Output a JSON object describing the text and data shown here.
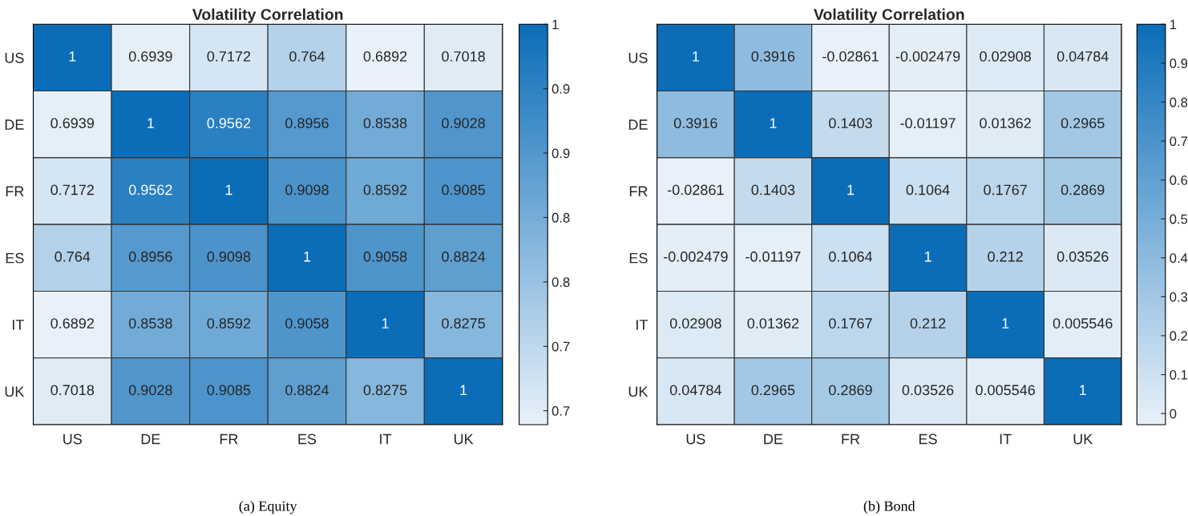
{
  "chart_data": [
    {
      "type": "heatmap",
      "title": "Volatility Correlation",
      "categories": [
        "US",
        "DE",
        "FR",
        "ES",
        "IT",
        "UK"
      ],
      "y_categories": [
        "US",
        "DE",
        "FR",
        "ES",
        "IT",
        "UK"
      ],
      "cells": [
        [
          1,
          0.6939,
          0.7172,
          0.764,
          0.6892,
          0.7018
        ],
        [
          0.6939,
          1,
          0.9562,
          0.8956,
          0.8538,
          0.9028
        ],
        [
          0.7172,
          0.9562,
          1,
          0.9098,
          0.8592,
          0.9085
        ],
        [
          0.764,
          0.8956,
          0.9098,
          1,
          0.9058,
          0.8824
        ],
        [
          0.6892,
          0.8538,
          0.8592,
          0.9058,
          1,
          0.8275
        ],
        [
          0.7018,
          0.9028,
          0.9085,
          0.8824,
          0.8275,
          1
        ]
      ],
      "data_labels": true,
      "clim": [
        0.6892,
        1
      ],
      "cticks": [
        {
          "value": 0.7,
          "label": "0.7"
        },
        {
          "value": 0.75,
          "label": "0.7"
        },
        {
          "value": 0.8,
          "label": "0.8"
        },
        {
          "value": 0.85,
          "label": "0.8"
        },
        {
          "value": 0.9,
          "label": "0.9"
        },
        {
          "value": 0.95,
          "label": "0.9"
        },
        1
      ],
      "annotations": [
        "(a) Equity"
      ]
    },
    {
      "type": "heatmap",
      "title": "Volatility Correlation",
      "categories": [
        "US",
        "DE",
        "FR",
        "ES",
        "IT",
        "UK"
      ],
      "y_categories": [
        "US",
        "DE",
        "FR",
        "ES",
        "IT",
        "UK"
      ],
      "cells": [
        [
          1,
          0.3916,
          -0.02861,
          -0.002479,
          0.02908,
          0.04784
        ],
        [
          0.3916,
          1,
          0.1403,
          -0.01197,
          0.01362,
          0.2965
        ],
        [
          -0.02861,
          0.1403,
          1,
          0.1064,
          0.1767,
          0.2869
        ],
        [
          -0.002479,
          -0.01197,
          0.1064,
          1,
          0.212,
          0.03526
        ],
        [
          0.02908,
          0.01362,
          0.1767,
          0.212,
          1,
          0.005546
        ],
        [
          0.04784,
          0.2965,
          0.2869,
          0.03526,
          0.005546,
          1
        ]
      ],
      "data_labels": true,
      "clim": [
        -0.02861,
        1
      ],
      "cticks": [
        0,
        0.1,
        0.2,
        0.3,
        0.4,
        0.5,
        0.6,
        0.7,
        0.8,
        0.9,
        1
      ],
      "annotations": [
        "(b) Bond"
      ]
    }
  ]
}
